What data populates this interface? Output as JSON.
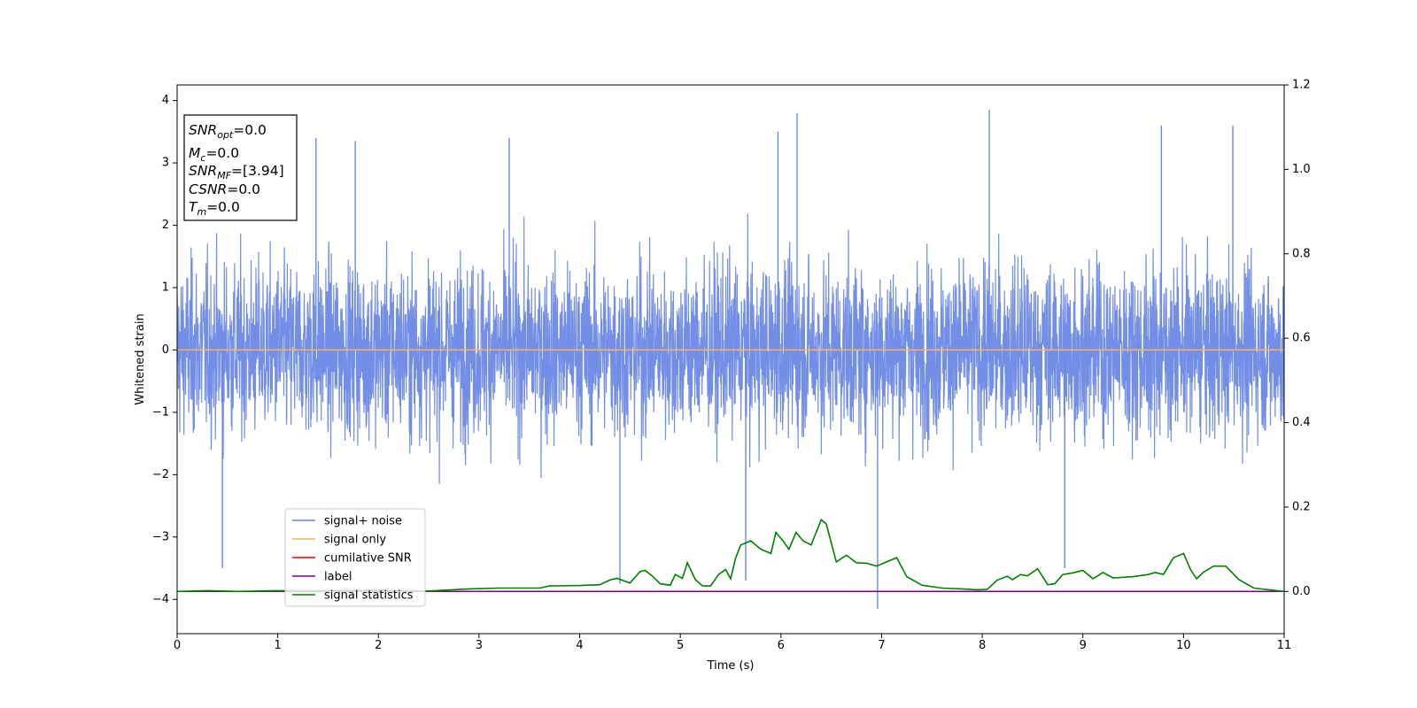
{
  "chart_data": {
    "type": "line",
    "xlabel": "Time (s)",
    "ylabel": "Whitened strain",
    "xlim": [
      0,
      11
    ],
    "ylim": [
      -4.55,
      4.25
    ],
    "y2lim": [
      -0.1,
      1.2
    ],
    "xticks": [
      0,
      1,
      2,
      3,
      4,
      5,
      6,
      7,
      8,
      9,
      10,
      11
    ],
    "yticks": [
      -4,
      -3,
      -2,
      -1,
      0,
      1,
      2,
      3,
      4
    ],
    "y2ticks": [
      "0.0",
      "0.2",
      "0.4",
      "0.6",
      "0.8",
      "1.0",
      "1.2"
    ],
    "grid": false,
    "legend_location": "lower-left",
    "colors": {
      "signal_noise": "#6b88e6",
      "signal_only": "#ffb35c",
      "cumulative_snr": "#ff0000",
      "label": "#800080",
      "signal_statistics": "#008000"
    },
    "series": [
      {
        "name": "signal+ noise",
        "axis": "left",
        "description_range": [
          -4.15,
          3.85
        ],
        "typical_band": [
          -2.0,
          2.0
        ],
        "notable_peaks": [
          {
            "x": 5.97,
            "y": 3.5
          },
          {
            "x": 6.16,
            "y": 3.8
          },
          {
            "x": 8.07,
            "y": 3.85
          },
          {
            "x": 9.78,
            "y": 3.6
          },
          {
            "x": 10.49,
            "y": 3.6
          },
          {
            "x": 1.38,
            "y": 3.4
          },
          {
            "x": 3.3,
            "y": 3.4
          },
          {
            "x": 1.77,
            "y": 3.35
          }
        ],
        "notable_troughs": [
          {
            "x": 6.96,
            "y": -4.15
          },
          {
            "x": 4.4,
            "y": -3.75
          },
          {
            "x": 5.65,
            "y": -3.7
          },
          {
            "x": 0.45,
            "y": -3.5
          },
          {
            "x": 8.82,
            "y": -3.5
          }
        ]
      },
      {
        "name": "signal only",
        "axis": "left",
        "x": [
          0,
          11
        ],
        "y": [
          0,
          0
        ]
      },
      {
        "name": "cumilative SNR",
        "axis": "right",
        "x": [
          0,
          11
        ],
        "y": [
          0,
          0
        ]
      },
      {
        "name": "label",
        "axis": "right",
        "x": [
          0,
          11
        ],
        "y": [
          0,
          0
        ]
      },
      {
        "name": "signal statistics",
        "axis": "right",
        "x": [
          0,
          0.3,
          0.6,
          1.0,
          1.5,
          2.0,
          2.5,
          2.9,
          3.2,
          3.6,
          3.7,
          4.0,
          4.2,
          4.3,
          4.37,
          4.5,
          4.6,
          4.65,
          4.72,
          4.8,
          4.9,
          4.95,
          5.02,
          5.07,
          5.15,
          5.22,
          5.3,
          5.38,
          5.45,
          5.5,
          5.55,
          5.6,
          5.7,
          5.8,
          5.9,
          5.95,
          6.02,
          6.08,
          6.15,
          6.22,
          6.3,
          6.4,
          6.45,
          6.55,
          6.65,
          6.75,
          6.85,
          6.95,
          7.05,
          7.15,
          7.25,
          7.4,
          7.6,
          7.8,
          7.95,
          8.05,
          8.15,
          8.25,
          8.3,
          8.38,
          8.45,
          8.55,
          8.65,
          8.72,
          8.8,
          8.9,
          9.0,
          9.1,
          9.2,
          9.3,
          9.5,
          9.65,
          9.72,
          9.8,
          9.9,
          10.0,
          10.07,
          10.13,
          10.2,
          10.3,
          10.42,
          10.55,
          10.7,
          11.0
        ],
        "y": [
          0.0,
          0.002,
          0.0,
          0.002,
          0.002,
          0.003,
          0.001,
          0.006,
          0.008,
          0.008,
          0.013,
          0.014,
          0.016,
          0.027,
          0.031,
          0.02,
          0.047,
          0.05,
          0.037,
          0.018,
          0.015,
          0.04,
          0.031,
          0.068,
          0.028,
          0.013,
          0.013,
          0.04,
          0.052,
          0.03,
          0.08,
          0.11,
          0.12,
          0.1,
          0.09,
          0.14,
          0.12,
          0.1,
          0.14,
          0.12,
          0.11,
          0.17,
          0.16,
          0.07,
          0.086,
          0.068,
          0.067,
          0.06,
          0.07,
          0.08,
          0.035,
          0.015,
          0.008,
          0.006,
          0.004,
          0.005,
          0.027,
          0.036,
          0.028,
          0.04,
          0.037,
          0.054,
          0.016,
          0.018,
          0.04,
          0.044,
          0.05,
          0.03,
          0.045,
          0.032,
          0.035,
          0.04,
          0.045,
          0.04,
          0.08,
          0.09,
          0.052,
          0.03,
          0.046,
          0.06,
          0.06,
          0.028,
          0.008,
          0.0
        ]
      }
    ]
  },
  "info_box": {
    "snr_opt_main": "SNR",
    "snr_opt_sub": "opt",
    "snr_opt_value": "=0.0",
    "mc_main": "M",
    "mc_sub": "c",
    "mc_value": "=0.0",
    "snr_mf_main": "SNR",
    "snr_mf_sub": "MF",
    "snr_mf_value": "=[3.94]",
    "csnr_main": "CSNR",
    "csnr_value": "=0.0",
    "tm_main": "T",
    "tm_sub": "m",
    "tm_value": "=0.0"
  }
}
